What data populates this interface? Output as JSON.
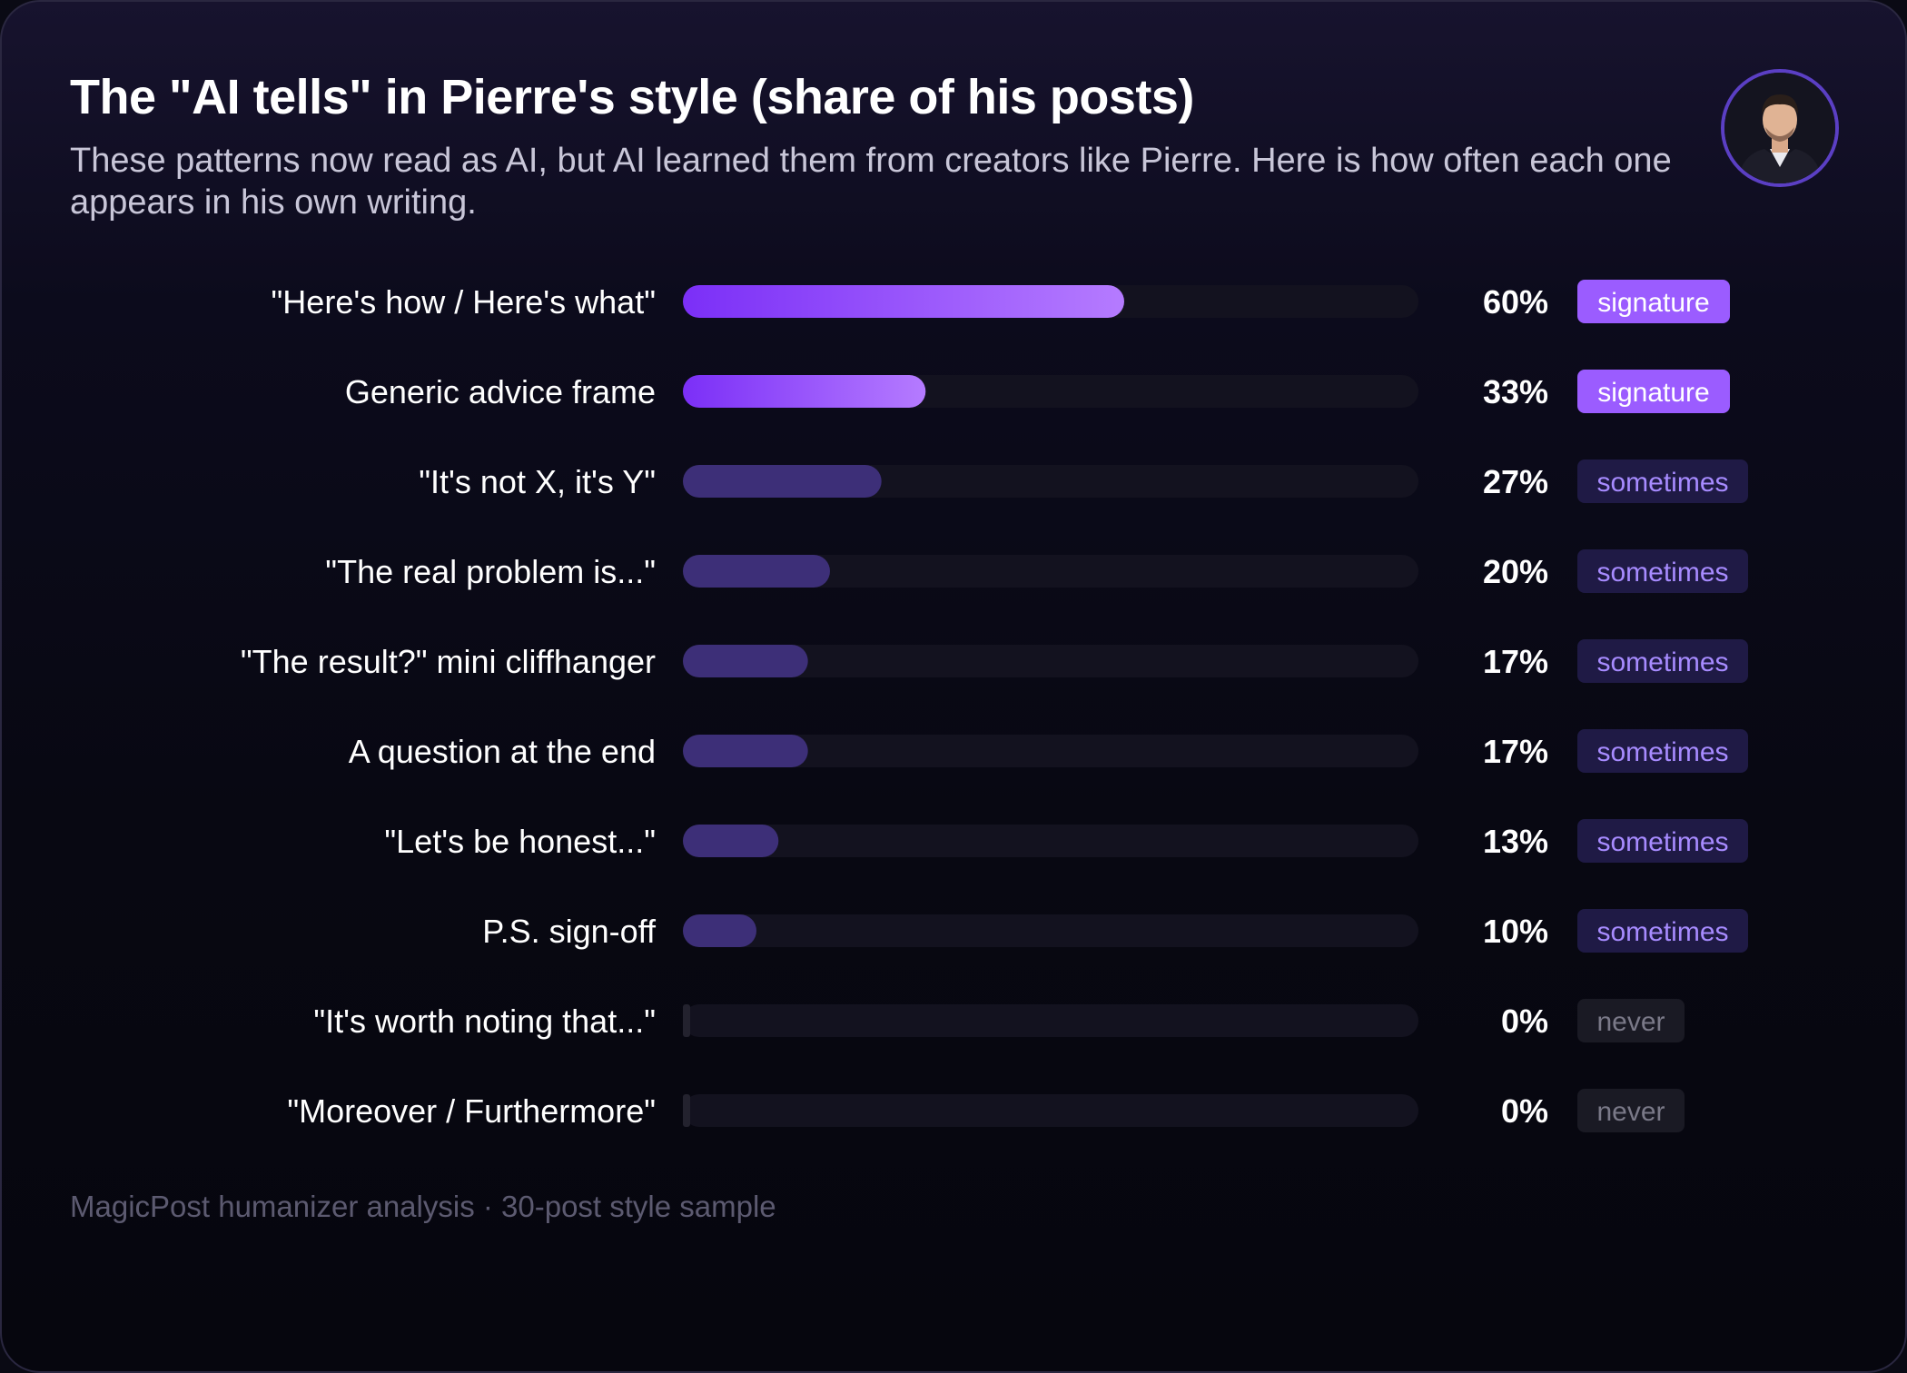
{
  "title": "The \"AI tells\" in Pierre's style (share of his posts)",
  "subtitle": "These patterns now read as AI, but AI learned them from creators like Pierre. Here is how often each one appears in his own writing.",
  "footer": "MagicPost humanizer analysis · 30-post style sample",
  "avatar_icon": "person-photo-avatar",
  "colors": {
    "signature_bar_start": "#7b2ff7",
    "signature_bar_end": "#b57bff",
    "sometimes_bar": "#3d2f78",
    "track": "#13121f",
    "signature_badge": "#9b5cff",
    "sometimes_badge_bg": "#1f1a45",
    "sometimes_badge_text": "#a78bff",
    "never_badge_bg": "#1a1a24",
    "never_badge_text": "#7a7988"
  },
  "chart_data": {
    "type": "bar",
    "orientation": "horizontal",
    "xlim": [
      0,
      100
    ],
    "unit": "%",
    "categories": [
      "\"Here's how / Here's what\"",
      "Generic advice frame",
      "\"It's not X, it's Y\"",
      "\"The real problem is...\"",
      "\"The result?\" mini cliffhanger",
      "A question at the end",
      "\"Let's be honest...\"",
      "P.S. sign-off",
      "\"It's worth noting that...\"",
      "\"Moreover / Furthermore\""
    ],
    "values": [
      60,
      33,
      27,
      20,
      17,
      17,
      13,
      10,
      0,
      0
    ],
    "value_labels": [
      "60%",
      "33%",
      "27%",
      "20%",
      "17%",
      "17%",
      "13%",
      "10%",
      "0%",
      "0%"
    ],
    "badges": [
      "signature",
      "signature",
      "sometimes",
      "sometimes",
      "sometimes",
      "sometimes",
      "sometimes",
      "sometimes",
      "never",
      "never"
    ]
  }
}
